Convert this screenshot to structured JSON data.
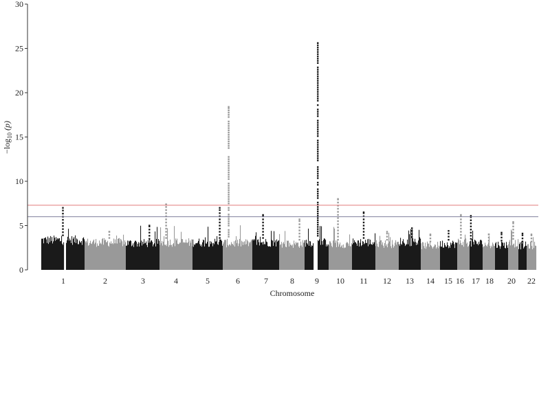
{
  "chart_data": {
    "type": "scatter",
    "subtype": "manhattan",
    "xlabel": "Chromosome",
    "ylabel": "−log10 (p)",
    "ylim": [
      0,
      30
    ],
    "y_ticks": [
      0,
      5,
      10,
      15,
      20,
      25,
      30
    ],
    "grid": false,
    "colors": {
      "odd": "#1a1a1a",
      "even": "#999999",
      "genome_wide": "#e07a7a",
      "suggestive": "#7f7f9c",
      "axis": "#333333"
    },
    "thresholds": [
      {
        "name": "genome-wide significance",
        "value": 7.3,
        "color": "#e07a7a"
      },
      {
        "name": "suggestive",
        "value": 6.0,
        "color": "#7f7f9c"
      }
    ],
    "chromosomes": [
      {
        "label": "1",
        "background_max": 3.9,
        "peak": 7.0
      },
      {
        "label": "2",
        "background_max": 3.6,
        "peak": 4.3
      },
      {
        "label": "3",
        "background_max": 3.5,
        "peak": 5.0
      },
      {
        "label": "4",
        "background_max": 3.6,
        "peak": 7.4
      },
      {
        "label": "5",
        "background_max": 3.6,
        "peak": 7.0
      },
      {
        "label": "6",
        "background_max": 3.5,
        "peak": 18.4
      },
      {
        "label": "7",
        "background_max": 3.6,
        "peak": 6.2
      },
      {
        "label": "8",
        "background_max": 3.4,
        "peak": 5.7
      },
      {
        "label": "9",
        "background_max": 3.6,
        "peak": 25.6
      },
      {
        "label": "10",
        "background_max": 3.4,
        "peak": 8.0
      },
      {
        "label": "11",
        "background_max": 3.6,
        "peak": 6.5
      },
      {
        "label": "12",
        "background_max": 3.4,
        "peak": 4.3
      },
      {
        "label": "13",
        "background_max": 3.7,
        "peak": 4.7
      },
      {
        "label": "14",
        "background_max": 3.2,
        "peak": 4.0
      },
      {
        "label": "15",
        "background_max": 3.4,
        "peak": 4.4
      },
      {
        "label": "16",
        "background_max": 3.6,
        "peak": 6.2
      },
      {
        "label": "17",
        "background_max": 3.5,
        "peak": 6.1
      },
      {
        "label": "18",
        "background_max": 3.3,
        "peak": 4.0
      },
      {
        "label": "19",
        "background_max": 3.3,
        "peak": 4.2
      },
      {
        "label": "20",
        "background_max": 3.5,
        "peak": 5.4
      },
      {
        "label": "21",
        "background_max": 3.2,
        "peak": 4.1
      },
      {
        "label": "22",
        "background_max": 3.2,
        "peak": 4.0
      }
    ],
    "x_tick_labels": [
      "1",
      "2",
      "3",
      "4",
      "5",
      "6",
      "7",
      "8",
      "9",
      "10",
      "11",
      "12",
      "13",
      "14",
      "15",
      "16",
      "17",
      "18",
      "20",
      "22"
    ]
  }
}
